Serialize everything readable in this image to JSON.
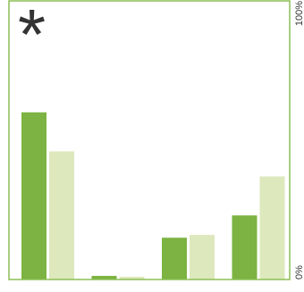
{
  "chart_data": {
    "type": "bar",
    "annotation": "*",
    "categories": [
      null,
      null,
      null,
      null
    ],
    "series": [
      {
        "color": "#7cb342",
        "values": [
          60,
          1.3,
          15,
          23
        ]
      },
      {
        "color": "#dde8bd",
        "values": [
          46,
          1,
          16,
          37
        ]
      }
    ],
    "ylim": [
      0,
      100
    ],
    "yticks": [
      {
        "value": 0,
        "label": "0%"
      },
      {
        "value": 100,
        "label": "100%"
      }
    ],
    "axis_side": "right",
    "frame_color": "#8cbf55"
  }
}
